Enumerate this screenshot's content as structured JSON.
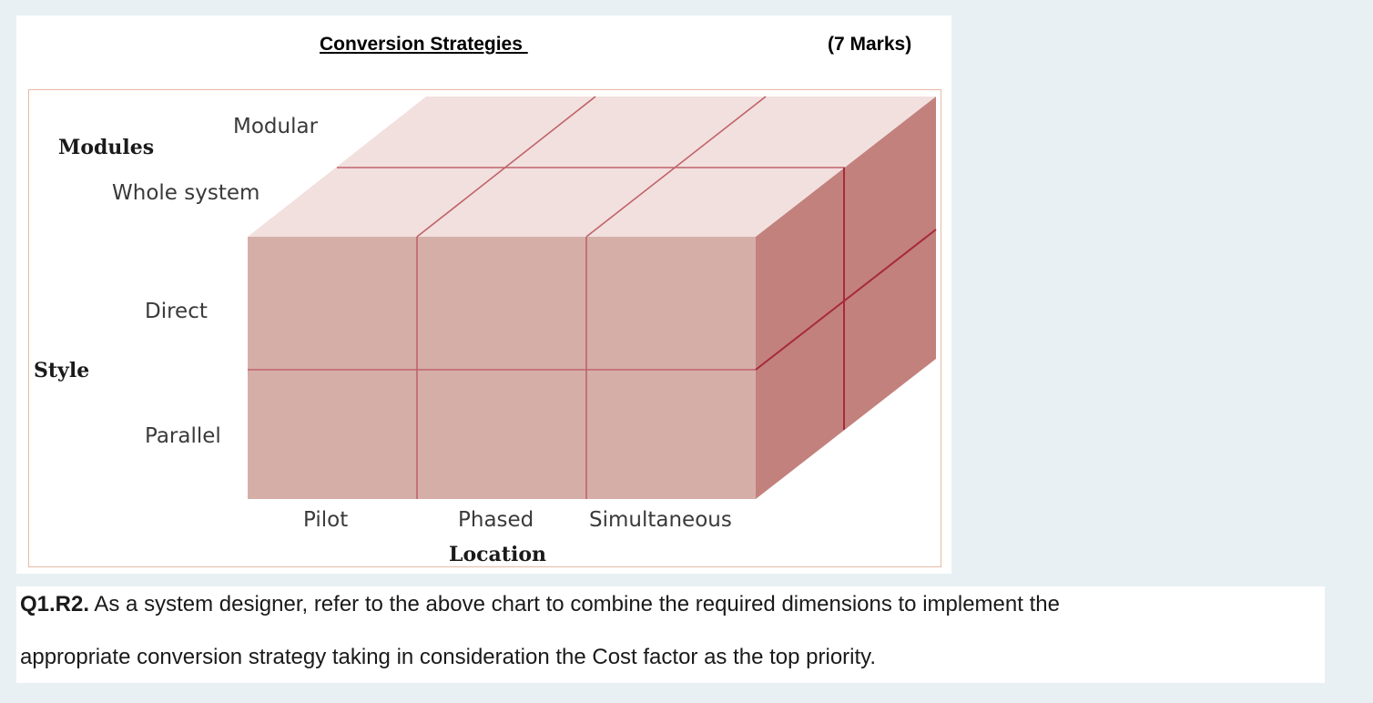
{
  "header": {
    "title": "Conversion Strategies ",
    "marks": "(7 Marks)"
  },
  "diagram": {
    "axes": {
      "modules": {
        "label": "Modules",
        "options": [
          "Modular",
          "Whole system"
        ]
      },
      "style": {
        "label": "Style",
        "options": [
          "Direct",
          "Parallel"
        ]
      },
      "location": {
        "label": "Location",
        "options": [
          "Pilot",
          "Phased",
          "Simultaneous"
        ]
      }
    },
    "colors": {
      "top_face": "#f2e0de",
      "front_face": "#d6aea8",
      "side_face": "#c2817d",
      "grid_line": "#c0636b",
      "side_grid_line": "#a72a3c",
      "figure_border": "#e8b9a5"
    }
  },
  "question": {
    "id": "Q1.R2.",
    "line1": " As a system designer, refer to the above chart to combine the required dimensions to implement the",
    "line2": "appropriate conversion strategy taking in consideration the Cost factor as the top priority."
  }
}
